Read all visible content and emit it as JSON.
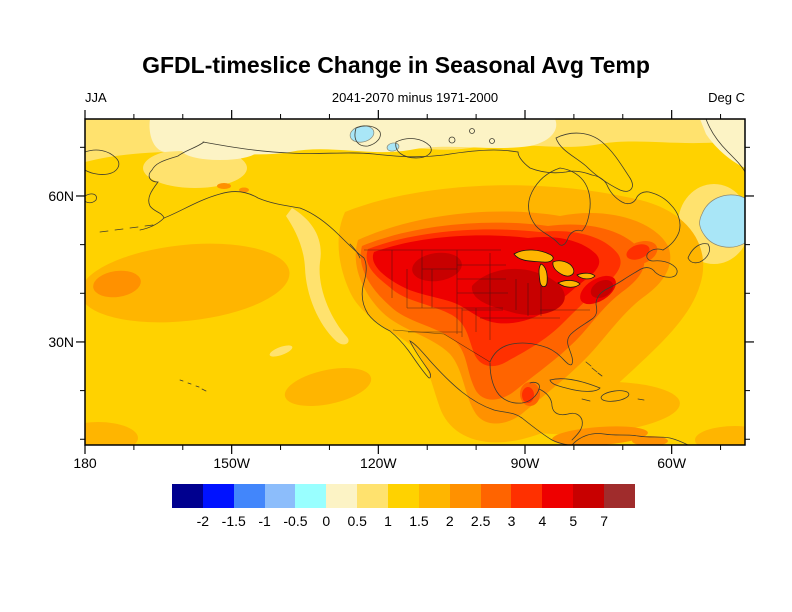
{
  "title": "GFDL-timeslice Change in Seasonal Avg Temp",
  "subtitle_left": "JJA",
  "subtitle_center": "2041-2070 minus 1971-2000",
  "subtitle_right": "Deg C",
  "axes": {
    "x_major": [
      {
        "label": "180",
        "lonW": 180
      },
      {
        "label": "150W",
        "lonW": 150
      },
      {
        "label": "120W",
        "lonW": 120
      },
      {
        "label": "90W",
        "lonW": 90
      },
      {
        "label": "60W",
        "lonW": 60
      }
    ],
    "x_minor_lonW": [
      170,
      160,
      140,
      130,
      110,
      100,
      80,
      70,
      50
    ],
    "y_major": [
      {
        "label": "60N",
        "latN": 60
      },
      {
        "label": "30N",
        "latN": 30
      }
    ],
    "y_minor_latN": [
      70,
      50,
      40,
      20,
      10
    ]
  },
  "colorbar": {
    "colors": [
      "#00008F",
      "#0012FF",
      "#4286FB",
      "#8CBDFB",
      "#99FFFF",
      "#FCF3C5",
      "#FFE26E",
      "#FFD200",
      "#FFB500",
      "#FF9100",
      "#FF6400",
      "#FF3000",
      "#EE0000",
      "#C80000",
      "#A02C2C"
    ],
    "boundary_labels": [
      "-2",
      "-1.5",
      "-1",
      "-0.5",
      "0",
      "0.5",
      "1",
      "1.5",
      "2",
      "2.5",
      "3",
      "4",
      "5",
      "7"
    ]
  },
  "palette": {
    "map_cool_patch": "#A9E6F7",
    "coastline": "#3E3C30",
    "state_border": "#1A1A1A",
    "frame": "#000000"
  },
  "chart_data": {
    "type": "heatmap",
    "subtype": "filled_contour_map",
    "title": "GFDL-timeslice Change in Seasonal Avg Temp",
    "season": "JJA",
    "period_difference": "2041-2070 minus 1971-2000",
    "units": "Deg C",
    "projection": "cylindrical equidistant, North America",
    "lon_range": [
      "180",
      "45W"
    ],
    "lat_range": [
      "9N",
      "76N"
    ],
    "contour_levels_degC": [
      -2,
      -1.5,
      -1,
      -0.5,
      0,
      0.5,
      1,
      1.5,
      2,
      2.5,
      3,
      4,
      5,
      7
    ],
    "legend_position": "bottom horizontal labelbar",
    "grid": "off",
    "features": [
      {
        "region": "Northern Great Plains / Upper Midwest / Great Lakes states",
        "value_degC": "5 to 7 (maximum warming)"
      },
      {
        "region": "Most of contiguous United States",
        "value_degC": "3 to 5"
      },
      {
        "region": "Southern Canada ring around US maximum",
        "value_degC": "2 to 3"
      },
      {
        "region": "Quebec / Gulf of St Lawrence spot",
        "value_degC": "3 to 4"
      },
      {
        "region": "Mexico interior tongue",
        "value_degC": "2.5 to 3"
      },
      {
        "region": "Alaska and Canadian Arctic coast",
        "value_degC": "0 to 1"
      },
      {
        "region": "Pacific and Atlantic oceans (background)",
        "value_degC": "1 to 2"
      },
      {
        "region": "Northeast Pacific patch near 40N 165W",
        "value_degC": "2 to 2.5"
      },
      {
        "region": "Caribbean / Gulf of Mexico band",
        "value_degC": "1.5 to 2.5"
      },
      {
        "region": "Cuba / Hispaniola / Central America spots",
        "value_degC": "2 to 2.5"
      },
      {
        "region": "Labrador Sea patch (right edge)",
        "value_degC": "-0.5 to 0 (slight cooling)"
      },
      {
        "region": "Arctic island patch near 74N 118W",
        "value_degC": "-0.5 to 0 (slight cooling)"
      }
    ]
  }
}
